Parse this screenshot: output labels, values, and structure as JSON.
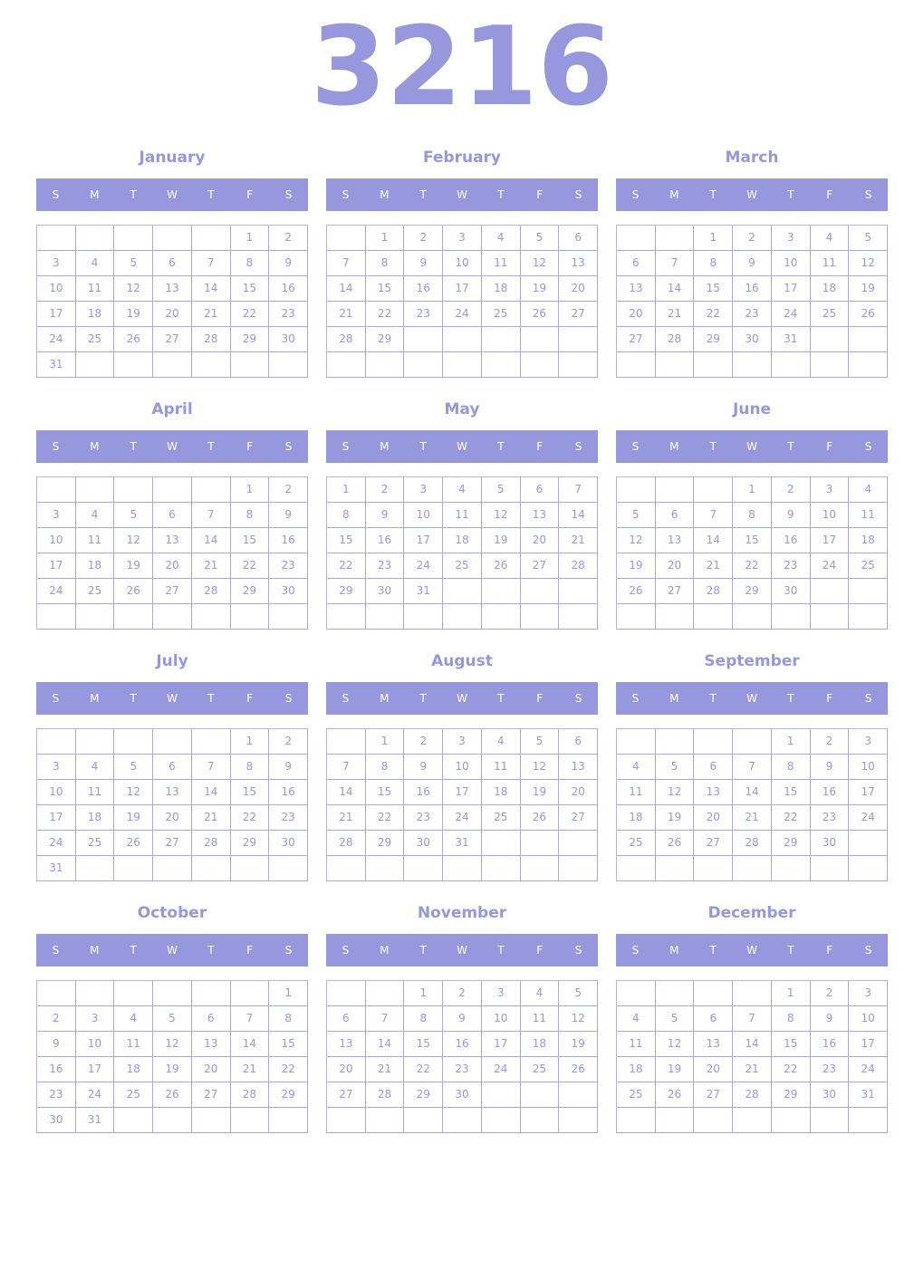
{
  "year": "3216",
  "weekday_labels": [
    "S",
    "M",
    "T",
    "W",
    "T",
    "F",
    "S"
  ],
  "accent_color": "#9797dd",
  "months": [
    {
      "name": "January",
      "first_weekday": 5,
      "days": 31
    },
    {
      "name": "February",
      "first_weekday": 1,
      "days": 29
    },
    {
      "name": "March",
      "first_weekday": 2,
      "days": 31
    },
    {
      "name": "April",
      "first_weekday": 5,
      "days": 30
    },
    {
      "name": "May",
      "first_weekday": 0,
      "days": 31
    },
    {
      "name": "June",
      "first_weekday": 3,
      "days": 30
    },
    {
      "name": "July",
      "first_weekday": 5,
      "days": 31
    },
    {
      "name": "August",
      "first_weekday": 1,
      "days": 31
    },
    {
      "name": "September",
      "first_weekday": 4,
      "days": 30
    },
    {
      "name": "October",
      "first_weekday": 6,
      "days": 31
    },
    {
      "name": "November",
      "first_weekday": 2,
      "days": 30
    },
    {
      "name": "December",
      "first_weekday": 4,
      "days": 31
    }
  ]
}
